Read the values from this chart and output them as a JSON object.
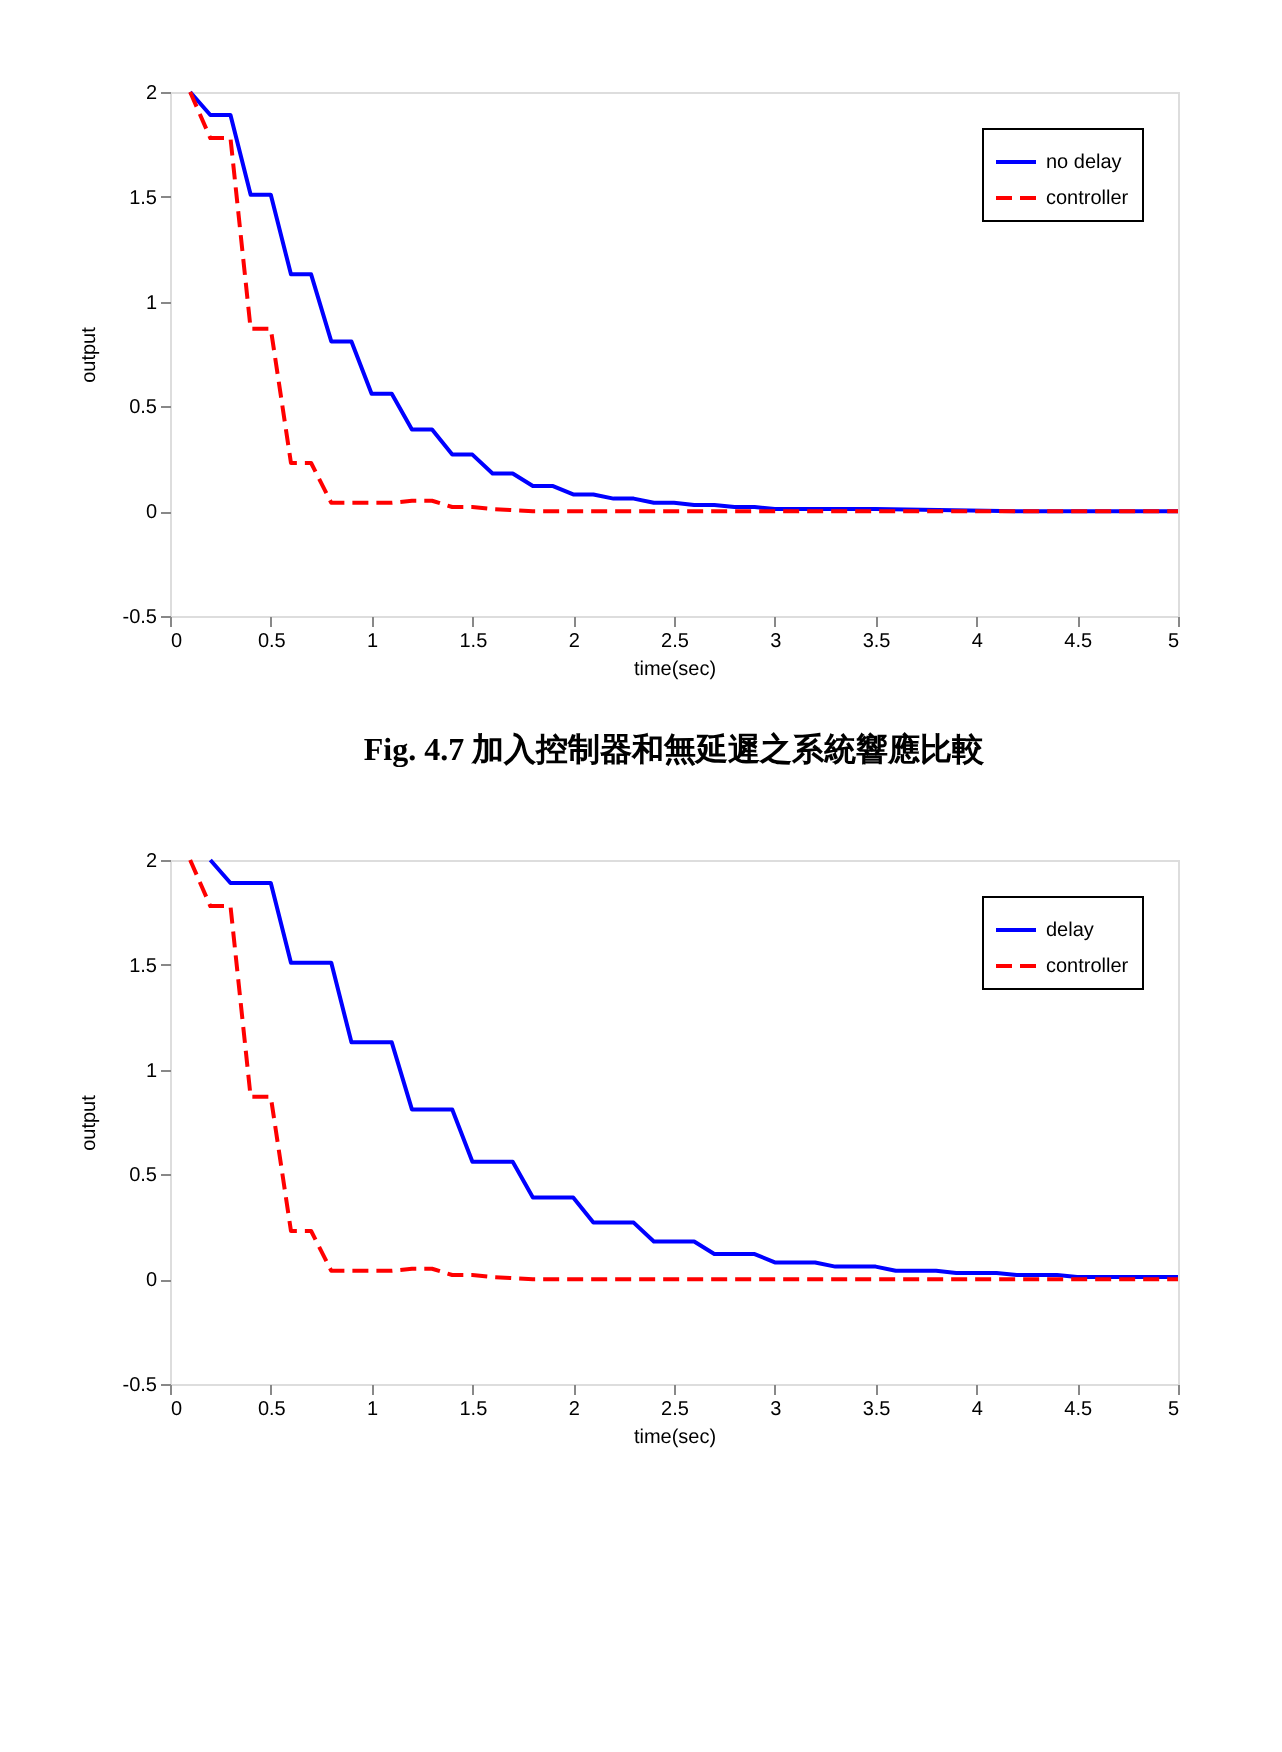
{
  "chart_data": [
    {
      "type": "line",
      "xlabel": "time(sec)",
      "ylabel": "output",
      "xlim": [
        0,
        5
      ],
      "ylim": [
        -0.5,
        2
      ],
      "xticks": [
        0,
        0.5,
        1,
        1.5,
        2,
        2.5,
        3,
        3.5,
        4,
        4.5,
        5
      ],
      "yticks": [
        -0.5,
        0,
        0.5,
        1,
        1.5,
        2
      ],
      "grid": false,
      "legend": "top right",
      "annotations": [
        "Fig. 4.7 加入控制器和無延遲之系統響應比較"
      ],
      "series": [
        {
          "name": "no delay",
          "color": "#0000ff",
          "line_style": "solid",
          "x": [
            0.1,
            0.2,
            0.3,
            0.4,
            0.5,
            0.6,
            0.7,
            0.8,
            0.9,
            1.0,
            1.1,
            1.2,
            1.3,
            1.4,
            1.5,
            1.6,
            1.7,
            1.8,
            1.9,
            2.0,
            2.1,
            2.2,
            2.3,
            2.4,
            2.5,
            2.6,
            2.7,
            2.8,
            2.9,
            3.0,
            3.1,
            3.2,
            3.5,
            4.2,
            5.0
          ],
          "values": [
            2,
            1.89,
            1.89,
            1.51,
            1.51,
            1.13,
            1.13,
            0.81,
            0.81,
            0.56,
            0.56,
            0.39,
            0.39,
            0.27,
            0.27,
            0.18,
            0.18,
            0.12,
            0.12,
            0.08,
            0.08,
            0.06,
            0.06,
            0.04,
            0.04,
            0.03,
            0.03,
            0.02,
            0.02,
            0.01,
            0.01,
            0.01,
            0.01,
            0,
            0
          ]
        },
        {
          "name": "controller",
          "color": "#ff0000",
          "line_style": "dashed",
          "x": [
            0.1,
            0.2,
            0.3,
            0.4,
            0.5,
            0.6,
            0.7,
            0.8,
            1.1,
            1.2,
            1.3,
            1.4,
            1.5,
            1.6,
            1.8,
            5.0
          ],
          "values": [
            2,
            1.78,
            1.78,
            0.87,
            0.87,
            0.23,
            0.23,
            0.04,
            0.04,
            0.05,
            0.05,
            0.02,
            0.02,
            0.01,
            0,
            0
          ]
        }
      ]
    },
    {
      "type": "line",
      "xlabel": "time(sec)",
      "ylabel": "output",
      "xlim": [
        0,
        5
      ],
      "ylim": [
        -0.5,
        2
      ],
      "xticks": [
        0,
        0.5,
        1,
        1.5,
        2,
        2.5,
        3,
        3.5,
        4,
        4.5,
        5
      ],
      "yticks": [
        -0.5,
        0,
        0.5,
        1,
        1.5,
        2
      ],
      "grid": false,
      "legend": "top right",
      "series": [
        {
          "name": "delay",
          "color": "#0000ff",
          "line_style": "solid",
          "x": [
            0.2,
            0.3,
            0.5,
            0.6,
            0.8,
            0.9,
            1.1,
            1.2,
            1.4,
            1.5,
            1.7,
            1.8,
            2.0,
            2.1,
            2.3,
            2.4,
            2.6,
            2.7,
            2.9,
            3.0,
            3.2,
            3.3,
            3.5,
            3.6,
            3.8,
            3.9,
            4.1,
            4.2,
            4.4,
            4.5,
            4.7,
            4.8,
            4.9,
            5.0
          ],
          "values": [
            2,
            1.89,
            1.89,
            1.51,
            1.51,
            1.13,
            1.13,
            0.81,
            0.81,
            0.56,
            0.56,
            0.39,
            0.39,
            0.27,
            0.27,
            0.18,
            0.18,
            0.12,
            0.12,
            0.08,
            0.08,
            0.06,
            0.06,
            0.04,
            0.04,
            0.03,
            0.03,
            0.02,
            0.02,
            0.01,
            0.01,
            0.01,
            0.01,
            0.01
          ]
        },
        {
          "name": "controller",
          "color": "#ff0000",
          "line_style": "dashed",
          "x": [
            0.1,
            0.2,
            0.3,
            0.4,
            0.5,
            0.6,
            0.7,
            0.8,
            1.1,
            1.2,
            1.3,
            1.4,
            1.5,
            1.6,
            1.8,
            5.0
          ],
          "values": [
            2,
            1.78,
            1.78,
            0.87,
            0.87,
            0.23,
            0.23,
            0.04,
            0.04,
            0.05,
            0.05,
            0.02,
            0.02,
            0.01,
            0,
            0
          ]
        }
      ]
    }
  ]
}
